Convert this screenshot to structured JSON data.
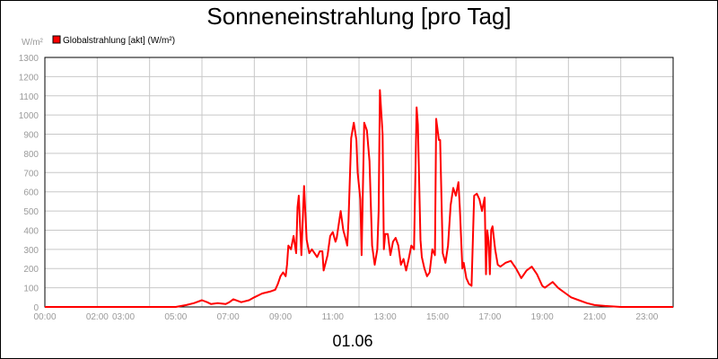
{
  "chart_data": {
    "type": "line",
    "title": "Sonneneinstrahlung [pro Tag]",
    "ylabel": "W/m²",
    "xlabel": "01.06",
    "ylim": [
      0,
      1300
    ],
    "y_ticks": [
      "0",
      "100",
      "200",
      "300",
      "400",
      "500",
      "600",
      "700",
      "800",
      "900",
      "1000",
      "1100",
      "1200",
      "1300"
    ],
    "x_tick_labels": [
      {
        "t": 0.0,
        "label": "00:00"
      },
      {
        "t": 2.0,
        "label": "02:00"
      },
      {
        "t": 3.0,
        "label": "03:00"
      },
      {
        "t": 5.0,
        "label": "05:00"
      },
      {
        "t": 7.0,
        "label": "07:00"
      },
      {
        "t": 9.0,
        "label": "09:00"
      },
      {
        "t": 11.0,
        "label": "11:00"
      },
      {
        "t": 13.0,
        "label": "13:00"
      },
      {
        "t": 15.0,
        "label": "15:00"
      },
      {
        "t": 17.0,
        "label": "17:00"
      },
      {
        "t": 19.0,
        "label": "19:00"
      },
      {
        "t": 21.0,
        "label": "21:00"
      },
      {
        "t": 23.0,
        "label": "23:00"
      }
    ],
    "grid": true,
    "legend_position": "top-left",
    "series": [
      {
        "name": "Globalstrahlung [akt] (W/m²)",
        "color": "#ff0000",
        "x": [
          0,
          1,
          2,
          3,
          4,
          5,
          5.4,
          5.7,
          6.0,
          6.2,
          6.35,
          6.6,
          6.9,
          7.05,
          7.2,
          7.5,
          7.8,
          8.0,
          8.3,
          8.6,
          8.8,
          8.9,
          9.0,
          9.1,
          9.2,
          9.25,
          9.3,
          9.4,
          9.5,
          9.6,
          9.65,
          9.7,
          9.8,
          9.9,
          10.0,
          10.1,
          10.2,
          10.3,
          10.4,
          10.5,
          10.6,
          10.65,
          10.8,
          10.9,
          11.0,
          11.1,
          11.15,
          11.3,
          11.4,
          11.5,
          11.55,
          11.6,
          11.7,
          11.8,
          11.9,
          11.95,
          12.05,
          12.1,
          12.2,
          12.3,
          12.4,
          12.5,
          12.6,
          12.7,
          12.75,
          12.8,
          12.9,
          12.95,
          13.0,
          13.1,
          13.2,
          13.3,
          13.4,
          13.5,
          13.6,
          13.7,
          13.8,
          13.9,
          14.0,
          14.1,
          14.2,
          14.25,
          14.35,
          14.4,
          14.5,
          14.6,
          14.7,
          14.8,
          14.9,
          14.95,
          15.05,
          15.1,
          15.2,
          15.3,
          15.4,
          15.5,
          15.6,
          15.7,
          15.8,
          15.85,
          15.95,
          16.0,
          16.1,
          16.2,
          16.3,
          16.4,
          16.5,
          16.6,
          16.7,
          16.8,
          16.85,
          16.9,
          16.95,
          17.0,
          17.05,
          17.1,
          17.2,
          17.3,
          17.4,
          17.5,
          17.6,
          17.8,
          18.0,
          18.2,
          18.4,
          18.6,
          18.8,
          19.0,
          19.1,
          19.3,
          19.4,
          19.6,
          19.7,
          19.9,
          20.1,
          20.4,
          20.7,
          21.0,
          21.4,
          22.0,
          23.0,
          24.0
        ],
        "values": [
          0,
          0,
          0,
          0,
          0,
          0,
          10,
          20,
          35,
          25,
          15,
          20,
          15,
          25,
          40,
          25,
          35,
          50,
          70,
          80,
          90,
          120,
          160,
          180,
          160,
          220,
          320,
          300,
          370,
          280,
          520,
          580,
          270,
          630,
          350,
          280,
          300,
          280,
          260,
          290,
          290,
          190,
          270,
          370,
          390,
          340,
          360,
          500,
          400,
          350,
          320,
          450,
          880,
          960,
          870,
          700,
          560,
          270,
          960,
          920,
          760,
          320,
          220,
          300,
          500,
          1130,
          900,
          300,
          380,
          380,
          270,
          340,
          360,
          320,
          220,
          250,
          190,
          250,
          320,
          300,
          1040,
          950,
          350,
          260,
          200,
          160,
          180,
          300,
          270,
          980,
          870,
          870,
          280,
          230,
          320,
          530,
          620,
          580,
          650,
          520,
          200,
          230,
          150,
          120,
          110,
          580,
          590,
          560,
          500,
          570,
          170,
          400,
          340,
          170,
          400,
          420,
          300,
          220,
          210,
          220,
          230,
          240,
          200,
          150,
          190,
          210,
          170,
          110,
          100,
          120,
          130,
          100,
          90,
          70,
          50,
          35,
          20,
          10,
          5,
          0,
          0,
          0
        ]
      }
    ]
  }
}
